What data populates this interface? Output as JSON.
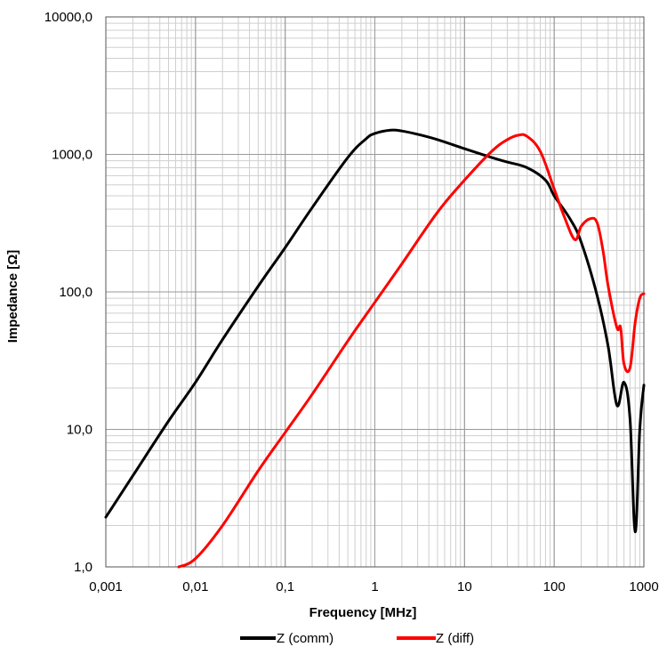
{
  "chart_data": {
    "type": "line",
    "xlabel": "Frequency  [MHz]",
    "ylabel": "Impedance [Ω]",
    "x_scale": "log",
    "y_scale": "log",
    "xlim": [
      0.001,
      1000
    ],
    "ylim": [
      1,
      10000
    ],
    "grid": true,
    "legend_position": "bottom",
    "x_tick_labels": [
      "0,001",
      "0,01",
      "0,1",
      "1",
      "10",
      "100",
      "1000"
    ],
    "y_tick_labels": [
      "1,0",
      "10,0",
      "100,0",
      "1000,0",
      "10000,0"
    ],
    "series": [
      {
        "name": "Z  (comm)",
        "color": "#000000",
        "x": [
          0.001,
          0.002,
          0.005,
          0.01,
          0.02,
          0.05,
          0.1,
          0.2,
          0.5,
          0.8,
          1,
          1.5,
          2,
          3,
          5,
          10,
          20,
          30,
          50,
          80,
          100,
          150,
          200,
          300,
          400,
          500,
          600,
          700,
          800,
          900,
          1000
        ],
        "values": [
          2.3,
          4.6,
          11.5,
          22,
          45,
          110,
          210,
          410,
          950,
          1300,
          1420,
          1500,
          1480,
          1400,
          1280,
          1100,
          950,
          880,
          800,
          650,
          500,
          340,
          230,
          95,
          40,
          15,
          22,
          12,
          1.8,
          10,
          21
        ]
      },
      {
        "name": "Z (diff)",
        "color": "#ff0000",
        "x": [
          0.0065,
          0.01,
          0.02,
          0.05,
          0.1,
          0.2,
          0.5,
          1,
          2,
          5,
          10,
          20,
          30,
          40,
          50,
          70,
          100,
          130,
          170,
          200,
          250,
          300,
          350,
          400,
          500,
          550,
          600,
          700,
          800,
          900,
          1000
        ],
        "values": [
          1,
          1.15,
          2,
          5,
          9.5,
          18,
          44,
          84,
          160,
          380,
          650,
          1050,
          1280,
          1380,
          1350,
          1050,
          560,
          350,
          240,
          300,
          340,
          320,
          200,
          110,
          55,
          55,
          30,
          28,
          60,
          90,
          97
        ]
      }
    ]
  }
}
